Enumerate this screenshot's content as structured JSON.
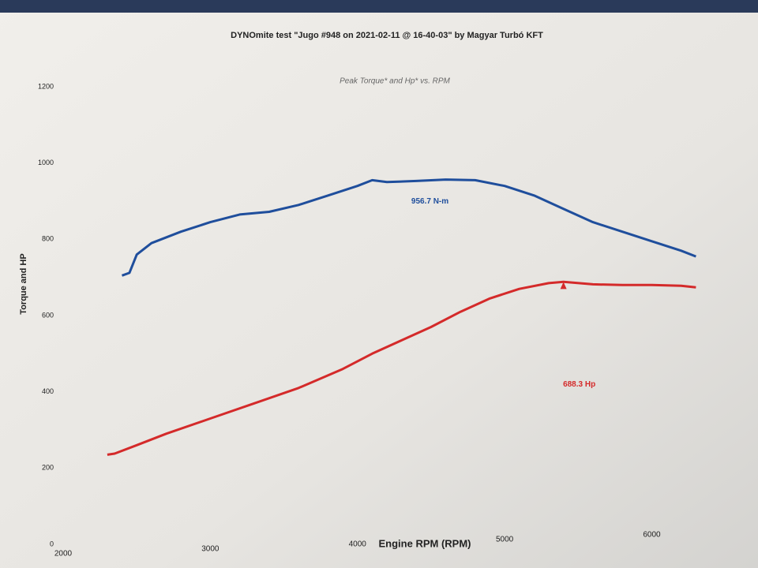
{
  "chart_data": {
    "type": "line",
    "title": "DYNOmite test \"Jugo #948 on 2021-02-11 @ 16-40-03\" by Magyar Turbó KFT",
    "subtitle": "Peak Torque* and Hp* vs. RPM",
    "x_label": "Engine RPM (RPM)",
    "y_label": "Torque and HP",
    "xlim": [
      2000,
      6400
    ],
    "xticks": [
      2000,
      3000,
      4000,
      5000,
      6000
    ],
    "ylim": [
      0,
      1200
    ],
    "yticks": [
      0,
      200,
      400,
      600,
      800,
      1000,
      1200
    ],
    "grid": false,
    "series": [
      {
        "color": "#1f4e9c",
        "peak_label": "956.7 N-m",
        "x": [
          2400,
          2450,
          2500,
          2600,
          2800,
          3000,
          3200,
          3400,
          3600,
          3800,
          4000,
          4100,
          4200,
          4400,
          4600,
          4800,
          5000,
          5200,
          5400,
          5600,
          5800,
          6000,
          6200,
          6300
        ],
        "values": [
          705,
          712,
          760,
          790,
          820,
          845,
          865,
          872,
          890,
          915,
          940,
          955,
          950,
          953,
          956.7,
          955,
          940,
          915,
          880,
          845,
          820,
          795,
          770,
          755
        ]
      },
      {
        "color": "#d42a2a",
        "peak_label": "688.3 Hp",
        "x": [
          2300,
          2350,
          2500,
          2700,
          3000,
          3300,
          3600,
          3900,
          4100,
          4300,
          4500,
          4700,
          4900,
          5100,
          5300,
          5400,
          5600,
          5800,
          6000,
          6200,
          6300
        ],
        "values": [
          235,
          238,
          260,
          290,
          330,
          370,
          410,
          460,
          500,
          535,
          570,
          610,
          645,
          670,
          685,
          688.3,
          682,
          680,
          680,
          678,
          674
        ]
      }
    ]
  }
}
